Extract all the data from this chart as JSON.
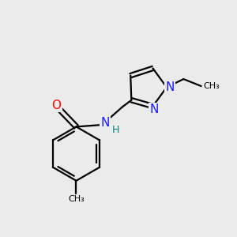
{
  "background_color": "#ebebeb",
  "bond_color": "#000000",
  "bond_width": 1.6,
  "N_color": "#1a1aff",
  "O_color": "#ff0000",
  "H_color": "#008080",
  "font_size_atoms": 11,
  "font_size_H": 9,
  "figsize": [
    3.0,
    3.0
  ],
  "dpi": 100,
  "xlim": [
    0,
    10
  ],
  "ylim": [
    0,
    10
  ]
}
